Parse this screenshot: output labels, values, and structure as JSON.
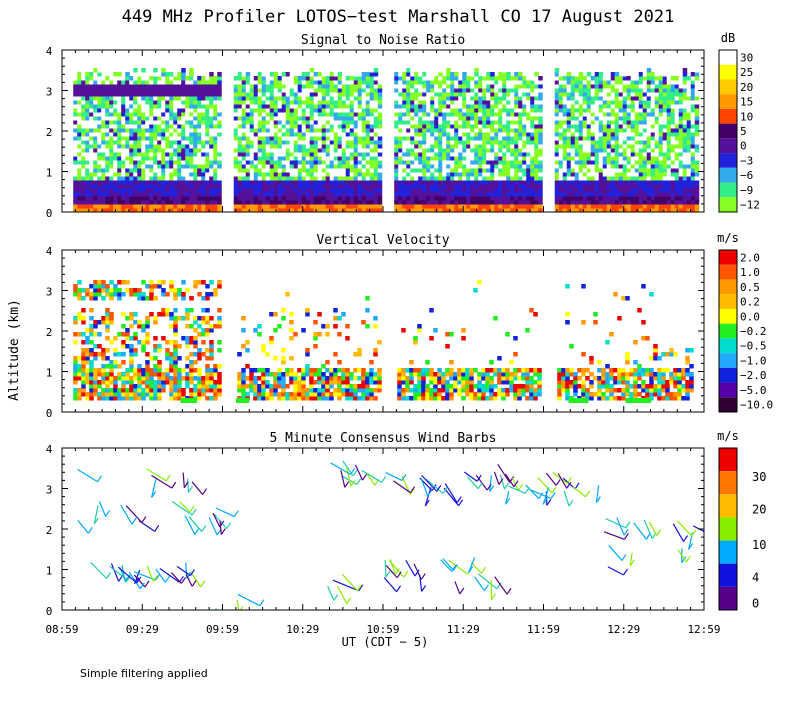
{
  "title": "449 MHz Profiler LOTOS−test Marshall CO 17 August 2021",
  "ylabel": "Altitude (km)",
  "xlabel": "UT  (CDT − 5)",
  "footnote": "Simple filtering applied",
  "x_ticks": [
    "08:59",
    "09:29",
    "09:59",
    "10:29",
    "10:59",
    "11:29",
    "11:59",
    "12:29",
    "12:59"
  ],
  "y_ticks": [
    "0",
    "1",
    "2",
    "3",
    "4"
  ],
  "chart_data": [
    {
      "type": "heatmap",
      "title": "Signal to Noise Ratio",
      "units": "dB",
      "ylim": [
        0,
        4
      ],
      "x_range_ut": [
        "08:59",
        "12:59"
      ],
      "colorbar": {
        "labels": [
          "30",
          "25",
          "20",
          "15",
          "10",
          "5",
          "0",
          "−3",
          "−6",
          "−9",
          "−12"
        ],
        "colors": [
          "#ffffff",
          "#ffff00",
          "#ffcc00",
          "#ff9900",
          "#ff4400",
          "#440066",
          "#551199",
          "#2222dd",
          "#33aaee",
          "#33ee88",
          "#88ff22"
        ]
      },
      "data_gaps_ut": [
        "09:59",
        "10:59",
        "11:59"
      ]
    },
    {
      "type": "heatmap",
      "title": "Vertical Velocity",
      "units": "m/s",
      "ylim": [
        0,
        4
      ],
      "colorbar": {
        "labels": [
          "2.0",
          "1.0",
          "0.5",
          "0.2",
          "0.0",
          "−0.2",
          "−0.5",
          "−1.0",
          "−2.0",
          "−5.0",
          "−10.0"
        ],
        "colors": [
          "#ee0000",
          "#ff5500",
          "#ff9900",
          "#ffbb00",
          "#ffff00",
          "#22ee22",
          "#00ddcc",
          "#22aaff",
          "#1122dd",
          "#5500aa",
          "#330033"
        ]
      }
    },
    {
      "type": "wind_barbs",
      "title": "5 Minute Consensus Wind Barbs",
      "units": "m/s",
      "ylim": [
        0,
        4
      ],
      "colorbar": {
        "labels": [
          "30",
          "20",
          "10",
          "4",
          "0"
        ],
        "segments": [
          "#ee0000",
          "#ff7700",
          "#ffbb00",
          "#88ee00",
          "#00aaff",
          "#1111dd",
          "#550088"
        ]
      }
    }
  ],
  "palette": {
    "snr": [
      "#88ff22",
      "#33ee88",
      "#33aaee",
      "#2222dd",
      "#551199",
      "#440066",
      "#ff4400",
      "#ff9900",
      "#ffcc00",
      "#ffff00",
      "#ffffff"
    ],
    "vv": [
      "#ffff00",
      "#ffbb00",
      "#ff9900",
      "#22ee22",
      "#00ddcc",
      "#22aaff",
      "#1122dd",
      "#ff5500",
      "#ee0000"
    ],
    "barb": [
      "#1111dd",
      "#550088",
      "#00aaff",
      "#22ccaa",
      "#88ee00"
    ]
  }
}
